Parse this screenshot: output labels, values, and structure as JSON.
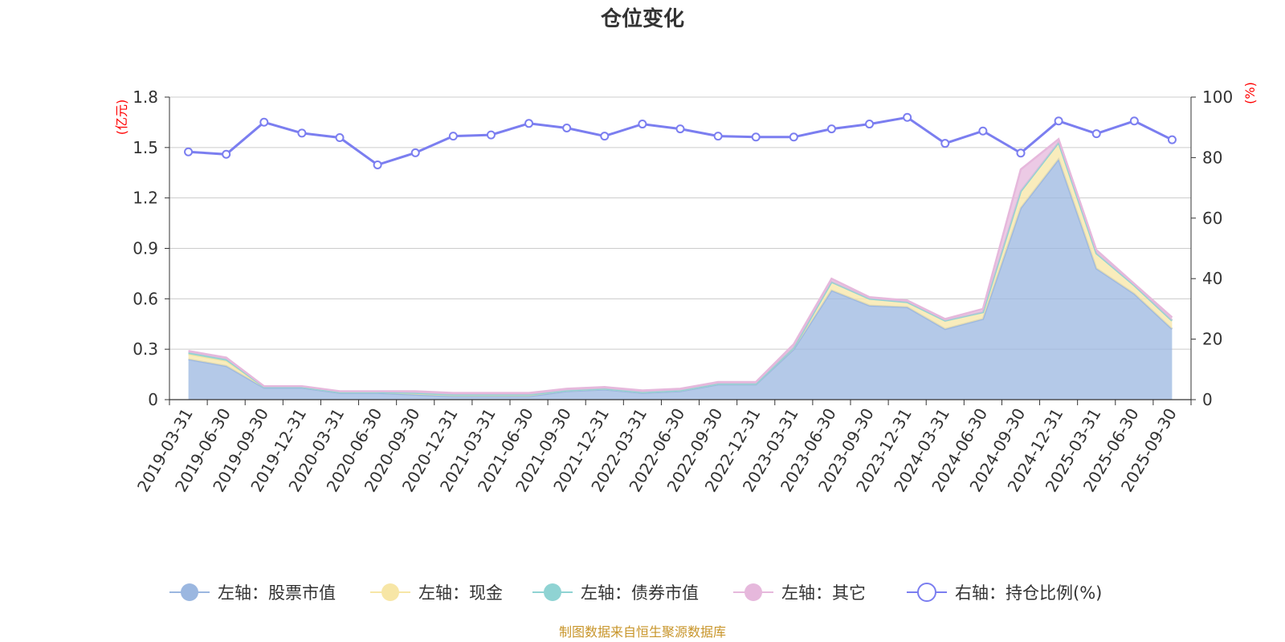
{
  "chart_data": {
    "type": "area",
    "title": "仓位变化",
    "left_axis_unit": "(亿元)",
    "right_axis_unit": "(%)",
    "left_ylim": [
      0,
      1.8
    ],
    "left_ticks": [
      "0",
      "0.3",
      "0.6",
      "0.9",
      "1.2",
      "1.5",
      "1.8"
    ],
    "right_ylim": [
      0,
      100
    ],
    "right_ticks": [
      "0",
      "20",
      "40",
      "60",
      "80",
      "100"
    ],
    "grid": true,
    "legend_position": "bottom",
    "categories": [
      "2019-03-31",
      "2019-06-30",
      "2019-09-30",
      "2019-12-31",
      "2020-03-31",
      "2020-06-30",
      "2020-09-30",
      "2020-12-31",
      "2021-03-31",
      "2021-06-30",
      "2021-09-30",
      "2021-12-31",
      "2022-03-31",
      "2022-06-30",
      "2022-09-30",
      "2022-12-31",
      "2023-03-31",
      "2023-06-30",
      "2023-09-30",
      "2023-12-31",
      "2024-03-31",
      "2024-06-30",
      "2024-09-30",
      "2024-12-31",
      "2025-03-31",
      "2025-06-30",
      "2025-09-30"
    ],
    "series": [
      {
        "name": "左轴：股票市值",
        "axis": "left",
        "stack": true,
        "color": "#9bb7e0",
        "values": [
          0.24,
          0.2,
          0.07,
          0.07,
          0.04,
          0.04,
          0.03,
          0.02,
          0.02,
          0.02,
          0.05,
          0.06,
          0.04,
          0.05,
          0.09,
          0.09,
          0.3,
          0.65,
          0.56,
          0.55,
          0.42,
          0.48,
          1.14,
          1.43,
          0.78,
          0.63,
          0.42
        ]
      },
      {
        "name": "左轴：现金",
        "axis": "left",
        "stack": true,
        "color": "#f7e6a6",
        "values": [
          0.03,
          0.03,
          0.005,
          0.005,
          0.005,
          0.005,
          0.01,
          0.01,
          0.01,
          0.01,
          0.005,
          0.005,
          0.005,
          0.005,
          0.005,
          0.005,
          0.01,
          0.05,
          0.04,
          0.03,
          0.05,
          0.04,
          0.1,
          0.1,
          0.09,
          0.05,
          0.05
        ]
      },
      {
        "name": "左轴：债券市值",
        "axis": "left",
        "stack": true,
        "color": "#8fd3d3",
        "values": [
          0.01,
          0.01,
          0,
          0,
          0,
          0,
          0,
          0,
          0,
          0,
          0,
          0,
          0,
          0,
          0,
          0,
          0,
          0,
          0,
          0,
          0,
          0,
          0,
          0,
          0,
          0,
          0
        ]
      },
      {
        "name": "左轴：其它",
        "axis": "left",
        "stack": true,
        "color": "#e6b8dc",
        "values": [
          0.01,
          0.01,
          0.005,
          0.005,
          0.005,
          0.005,
          0.01,
          0.01,
          0.01,
          0.01,
          0.01,
          0.01,
          0.01,
          0.01,
          0.01,
          0.01,
          0.02,
          0.02,
          0.01,
          0.01,
          0.01,
          0.02,
          0.13,
          0.02,
          0.02,
          0.01,
          0.02
        ]
      },
      {
        "name": "右轴：持仓比例(%)",
        "axis": "right",
        "stack": false,
        "color": "#7b7ef0",
        "values": [
          81.9,
          81.1,
          91.7,
          88.1,
          86.6,
          77.6,
          81.6,
          87.1,
          87.5,
          91.3,
          89.8,
          87.1,
          91.1,
          89.5,
          87.1,
          86.8,
          86.8,
          89.5,
          91.1,
          93.3,
          84.7,
          88.8,
          81.5,
          92.1,
          87.9,
          92.1,
          85.9
        ]
      }
    ],
    "source_note": "制图数据来自恒生聚源数据库"
  }
}
